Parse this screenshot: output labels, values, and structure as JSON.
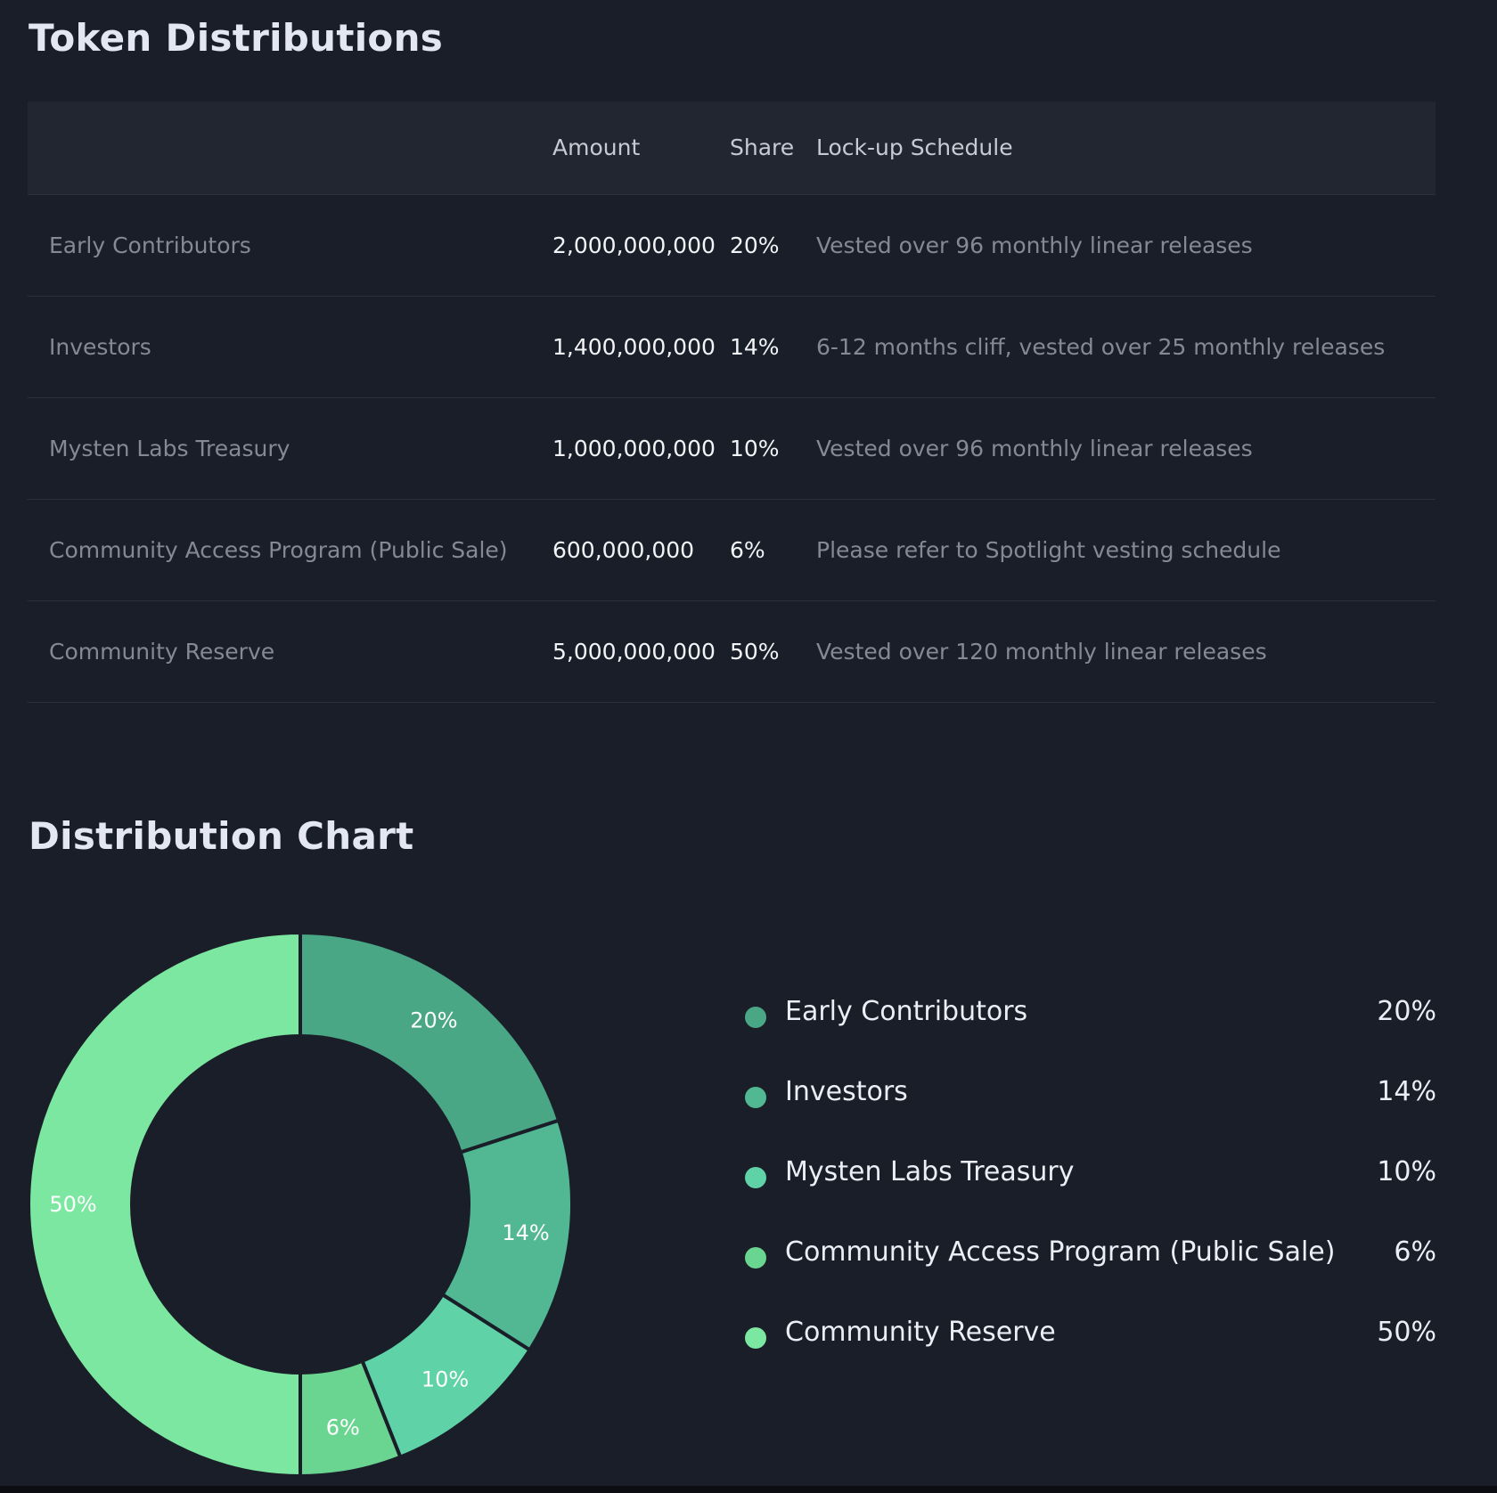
{
  "sections": {
    "distributions_title": "Token Distributions",
    "chart_title": "Distribution Chart"
  },
  "table": {
    "headers": [
      "",
      "Amount",
      "Share",
      "Lock-up Schedule"
    ],
    "rows": [
      {
        "name": "Early Contributors",
        "amount": "2,000,000,000",
        "share": "20%",
        "schedule": "Vested over 96 monthly linear releases"
      },
      {
        "name": "Investors",
        "amount": "1,400,000,000",
        "share": "14%",
        "schedule": "6-12 months cliff, vested over 25 monthly releases"
      },
      {
        "name": "Mysten Labs Treasury",
        "amount": "1,000,000,000",
        "share": "10%",
        "schedule": "Vested over 96 monthly linear releases"
      },
      {
        "name": "Community Access Program (Public Sale)",
        "amount": "600,000,000",
        "share": "6%",
        "schedule": "Please refer to Spotlight vesting schedule"
      },
      {
        "name": "Community Reserve",
        "amount": "5,000,000,000",
        "share": "50%",
        "schedule": "Vested over 120 monthly linear releases"
      }
    ]
  },
  "chart_data": {
    "type": "pie",
    "variant": "donut",
    "title": "Distribution Chart",
    "categories": [
      "Early Contributors",
      "Investors",
      "Mysten Labs Treasury",
      "Community Access Program (Public Sale)",
      "Community Reserve"
    ],
    "values": [
      20,
      14,
      10,
      6,
      50
    ],
    "labels": [
      "20%",
      "14%",
      "10%",
      "6%",
      "50%"
    ],
    "colors": [
      "#4aa785",
      "#52b893",
      "#5fd3a7",
      "#6ad491",
      "#7ce7a0"
    ],
    "legend_position": "right"
  },
  "legend": {
    "items": [
      {
        "label": "Early Contributors",
        "value": "20%",
        "color": "#4aa785"
      },
      {
        "label": "Investors",
        "value": "14%",
        "color": "#52b893"
      },
      {
        "label": "Mysten Labs Treasury",
        "value": "10%",
        "color": "#5fd3a7"
      },
      {
        "label": "Community Access Program (Public Sale)",
        "value": "6%",
        "color": "#6ad491"
      },
      {
        "label": "Community Reserve",
        "value": "50%",
        "color": "#7ce7a0"
      }
    ]
  },
  "theme": {
    "background": "#1a1e28",
    "header_bg": "#222631",
    "divider": "#2c303b"
  }
}
